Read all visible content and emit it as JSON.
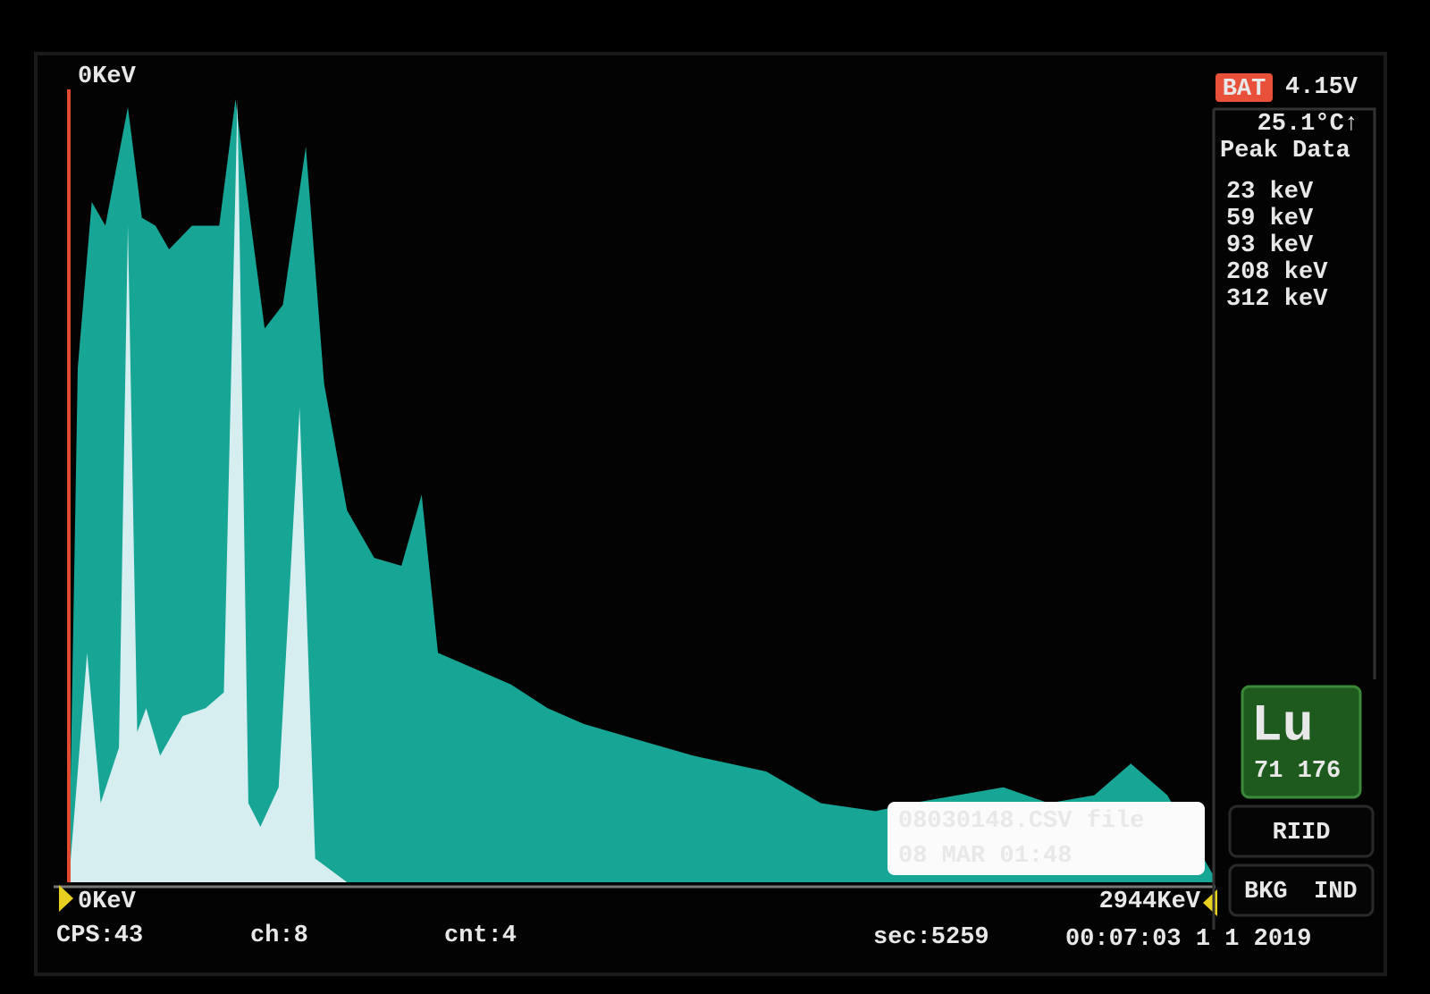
{
  "chart_data": {
    "type": "area",
    "xlim": [
      0,
      2944
    ],
    "xticks": [
      {
        "value": 0,
        "label": "0KeV"
      },
      {
        "value": 2944,
        "label": "2944KeV"
      }
    ],
    "ylim": [
      0,
      100
    ],
    "series": [
      {
        "color": "#17a596",
        "x": [
          0,
          23,
          59,
          94,
          152,
          188,
          223,
          258,
          317,
          387,
          429,
          469,
          504,
          551,
          610,
          657,
          716,
          786,
          856,
          908,
          950,
          1044,
          1138,
          1232,
          1326,
          1466,
          1607,
          1795,
          1935,
          2076,
          2170,
          2287,
          2405,
          2522,
          2639,
          2733,
          2827,
          2944
        ],
        "values": [
          0,
          65,
          86,
          83,
          98,
          84,
          83,
          80,
          83,
          83,
          99,
          83,
          70,
          73,
          93,
          63,
          47,
          41,
          40,
          49,
          29,
          27,
          25,
          22,
          20,
          18,
          16,
          14,
          10,
          9,
          10,
          11,
          12,
          10,
          11,
          15,
          11,
          1
        ]
      },
      {
        "color": "#d6eef0",
        "x": [
          0,
          23,
          47,
          82,
          129,
          152,
          176,
          199,
          235,
          293,
          352,
          399,
          434,
          462,
          493,
          540,
          594,
          634,
          716,
          903,
          950
        ],
        "values": [
          0,
          14,
          29,
          10,
          17,
          83,
          19,
          22,
          16,
          21,
          22,
          24,
          99,
          10,
          7,
          12,
          60,
          3,
          0,
          0,
          0
        ]
      }
    ]
  },
  "cursor_label": "0KeV",
  "panel": {
    "battery_label": "BAT",
    "voltage": "4.15V",
    "temperature": "25.1°C↑",
    "peak_title": "Peak Data",
    "peaks": [
      "23 keV",
      "59 keV",
      "93 keV",
      "208 keV",
      "312 keV"
    ],
    "element": {
      "symbol": "Lu",
      "numbers": "71 176"
    },
    "riid": "RIID",
    "bkg": "BKG",
    "ind": "IND"
  },
  "popup": {
    "file": "08030148.CSV file",
    "date": "08 MAR 01:48"
  },
  "status": {
    "cps": "CPS:43",
    "ch": "ch:8",
    "cnt": "cnt:4",
    "sec": "sec:5259",
    "clock": "00:07:03 1 1 2019"
  }
}
